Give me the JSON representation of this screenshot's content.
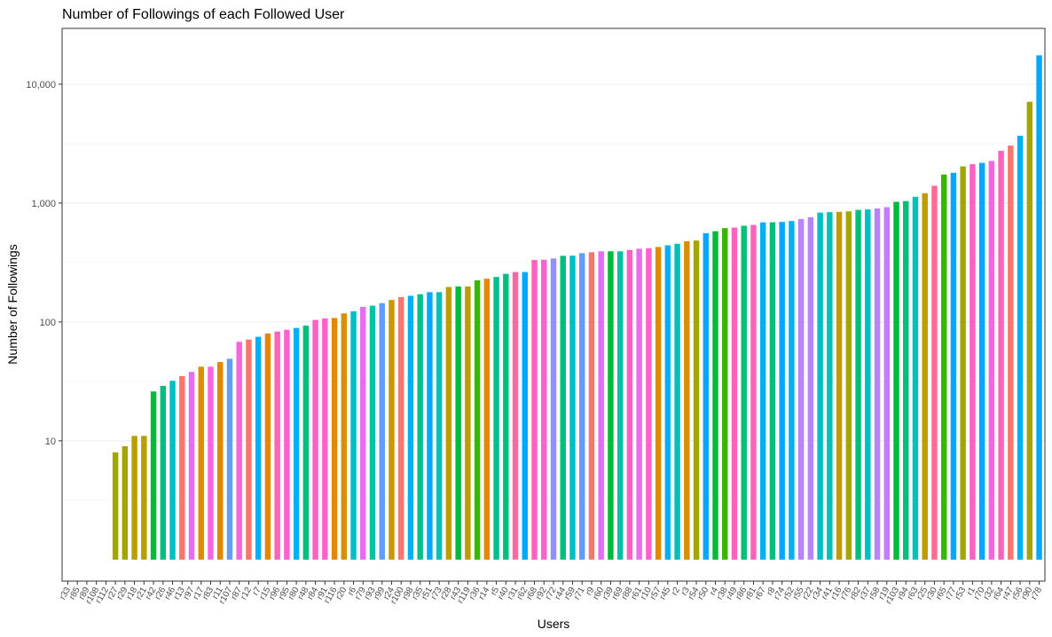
{
  "chart_data": {
    "type": "bar",
    "title": "Number of Followings of each Followed User",
    "x_label": "Users",
    "y_label": "Number of Followings",
    "log_scale": true,
    "grid": true,
    "ylim": [
      0.66,
      29500
    ],
    "yticks": [
      10,
      100,
      {
        "value": 1000,
        "label": "1,000"
      },
      {
        "value": 10000,
        "label": "10,000"
      }
    ],
    "yminor": [
      3.162,
      31.62,
      316.2,
      3162
    ],
    "categories": [
      "r33",
      "r85",
      "r89",
      "r108",
      "r112",
      "r27",
      "r29",
      "r18",
      "r21",
      "r42",
      "r26",
      "r46",
      "r13",
      "r97",
      "r17",
      "r83",
      "r11",
      "r107",
      "r87",
      "r12",
      "r7",
      "r15",
      "r96",
      "r95",
      "r80",
      "r48",
      "r84",
      "r91",
      "r116",
      "r20",
      "r6",
      "r79",
      "r93",
      "r99",
      "r24",
      "r100",
      "r98",
      "r35",
      "r51",
      "r73",
      "r28",
      "r43",
      "r119",
      "r36",
      "r14",
      "r5",
      "r40",
      "r31",
      "r62",
      "r68",
      "r92",
      "r72",
      "r44",
      "r59",
      "r71",
      "r9",
      "r60",
      "r39",
      "r69",
      "r88",
      "r61",
      "r10",
      "r57",
      "r45",
      "r2",
      "r3",
      "r54",
      "r50",
      "r4",
      "r38",
      "r49",
      "r86",
      "r81",
      "r67",
      "r8",
      "r74",
      "r52",
      "r55",
      "r22",
      "r34",
      "r41",
      "r16",
      "r76",
      "r82",
      "r37",
      "r58",
      "r19",
      "r103",
      "r94",
      "r63",
      "r25",
      "r30",
      "r65",
      "r77",
      "r53",
      "r1",
      "r70",
      "r32",
      "r64",
      "r47",
      "r56",
      "r90",
      "r78"
    ],
    "values": [
      1,
      1,
      1,
      1,
      1,
      8,
      9,
      11,
      11,
      26,
      29,
      32,
      35,
      38,
      42,
      42,
      46,
      49,
      68,
      71,
      75,
      80,
      83,
      86,
      89,
      93,
      104,
      107,
      108,
      118,
      123,
      134,
      137,
      144,
      153,
      162,
      166,
      171,
      178,
      178,
      197,
      199,
      199,
      224,
      231,
      239,
      254,
      263,
      263,
      332,
      334,
      342,
      360,
      361,
      379,
      386,
      393,
      393,
      393,
      403,
      413,
      417,
      427,
      441,
      455,
      478,
      484,
      558,
      580,
      616,
      622,
      645,
      655,
      688,
      690,
      694,
      706,
      734,
      760,
      832,
      839,
      843,
      852,
      876,
      884,
      901,
      925,
      1025,
      1040,
      1129,
      1210,
      1398,
      1741,
      1798,
      2037,
      2125,
      2180,
      2259,
      2754,
      3048,
      3685,
      7114,
      17500
    ],
    "colors": [
      "#00b0f6",
      "#00bfc4",
      "#00bfc4",
      "#00c08b",
      "#9590ff",
      "#a3a500",
      "#a3a500",
      "#b79f00",
      "#b79f00",
      "#00ba38",
      "#00bf7d",
      "#00bfc4",
      "#f8766d",
      "#e76bf3",
      "#d89000",
      "#f564e3",
      "#e58700",
      "#619cff",
      "#f763e0",
      "#f8766d",
      "#00b0f6",
      "#e58700",
      "#ff62bc",
      "#fd61d1",
      "#00b0f6",
      "#00bf7d",
      "#ff61c3",
      "#fe61cf",
      "#e58700",
      "#d89000",
      "#00bfc4",
      "#e76bf3",
      "#00c1a3",
      "#619cff",
      "#c99800",
      "#f8766d",
      "#00b0f6",
      "#00c08b",
      "#00a9ff",
      "#00c0b8",
      "#c09b00",
      "#00ba38",
      "#c09b00",
      "#39b600",
      "#e58700",
      "#00c08b",
      "#00bf7d",
      "#ff67a4",
      "#00a9ff",
      "#ff62bc",
      "#fd61d1",
      "#8f91ff",
      "#00bf7d",
      "#00bfc4",
      "#619cff",
      "#f8766d",
      "#e76bf3",
      "#00ba38",
      "#00c1a3",
      "#ff61c3",
      "#e76bf3",
      "#fd61d1",
      "#e58700",
      "#00b0f6",
      "#00c0b8",
      "#d89000",
      "#a3a500",
      "#00a9ff",
      "#00ba38",
      "#39b600",
      "#ff61c3",
      "#00bf7d",
      "#ff62bc",
      "#00b0f6",
      "#00bf7d",
      "#00a9ff",
      "#00b0f6",
      "#b983ff",
      "#b983ff",
      "#00bfc4",
      "#00c0b8",
      "#c09b00",
      "#a3a500",
      "#00bf7d",
      "#00bfc4",
      "#b983ff",
      "#c77cff",
      "#00ba38",
      "#00bf7d",
      "#00c0b8",
      "#c09b00",
      "#ff6c91",
      "#39b600",
      "#00a9ff",
      "#a3a500",
      "#ff61c3",
      "#00a9ff",
      "#f564e3",
      "#ff62bc",
      "#f8766d",
      "#00b0f6",
      "#a3a500",
      "#00a9ff"
    ]
  }
}
